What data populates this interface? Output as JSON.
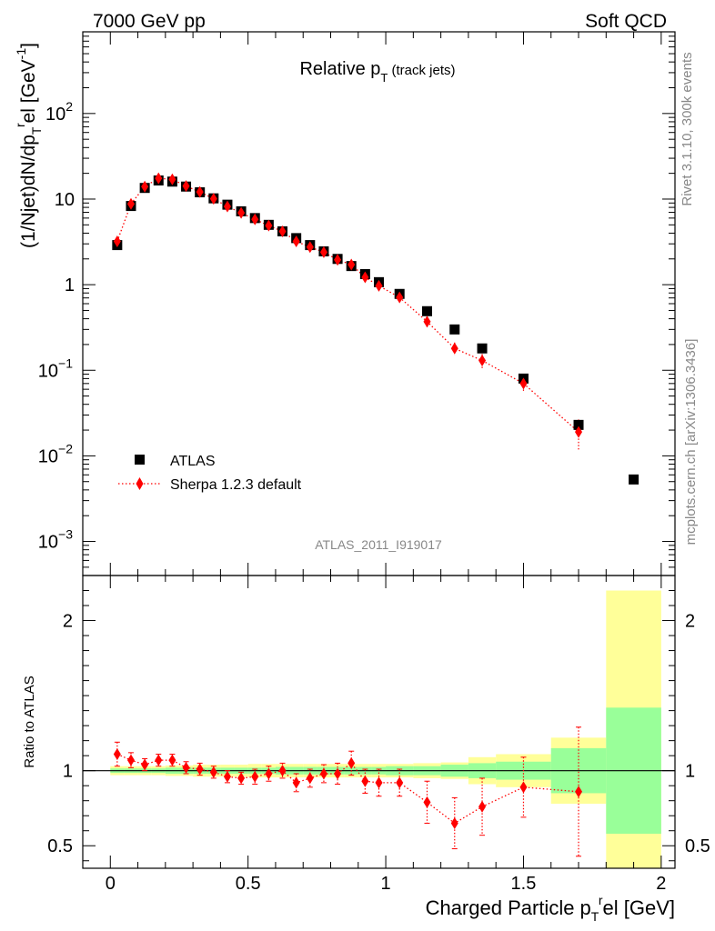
{
  "header": {
    "left": "7000 GeV pp",
    "right": "Soft QCD"
  },
  "title": {
    "main": "Relative p",
    "sub": "T",
    "suffix": " (track jets)"
  },
  "side_labels": {
    "rivet": "Rivet 3.1.10,  300k events",
    "mcplots": "mcplots.cern.ch [arXiv:1306.3436]"
  },
  "analysis_id": "ATLAS_2011_I919017",
  "chart_data": [
    {
      "type": "scatter",
      "panel": "main",
      "xlim": [
        -0.1,
        2.05
      ],
      "ylog": true,
      "ylim": [
        0.0004,
        900
      ],
      "ylabel": {
        "a": "(1/Njet)dN/dp",
        "b": "T",
        "c": "r",
        "d": "el [GeV",
        "e": "-1",
        "f": "]"
      },
      "yticks": [
        {
          "value": 1000,
          "label": ""
        },
        {
          "value": 100,
          "label": "10",
          "exp": "2"
        },
        {
          "value": 10,
          "label": "10",
          "exp": ""
        },
        {
          "value": 1,
          "label": "1",
          "exp": ""
        },
        {
          "value": 0.1,
          "label": "10",
          "exp": "−1"
        },
        {
          "value": 0.01,
          "label": "10",
          "exp": "−2"
        },
        {
          "value": 0.001,
          "label": "10",
          "exp": "−3"
        }
      ],
      "legend_position": "lower-left",
      "series": [
        {
          "name": "ATLAS",
          "color": "#000000",
          "marker": "square",
          "x": [
            0.025,
            0.075,
            0.125,
            0.175,
            0.225,
            0.275,
            0.325,
            0.375,
            0.425,
            0.475,
            0.525,
            0.575,
            0.625,
            0.675,
            0.725,
            0.775,
            0.825,
            0.875,
            0.925,
            0.975,
            1.05,
            1.15,
            1.25,
            1.35,
            1.5,
            1.7,
            1.9
          ],
          "y": [
            2.9,
            8.3,
            13.5,
            16.5,
            16.0,
            14.0,
            12.0,
            10.2,
            8.6,
            7.2,
            6.0,
            5.0,
            4.2,
            3.5,
            2.9,
            2.45,
            2.0,
            1.65,
            1.33,
            1.07,
            0.78,
            0.49,
            0.3,
            0.18,
            0.08,
            0.023,
            0.0053
          ]
        },
        {
          "name": "Sherpa 1.2.3 default",
          "color": "#ff0000",
          "marker": "diamond",
          "line": "dotted",
          "x": [
            0.025,
            0.075,
            0.125,
            0.175,
            0.225,
            0.275,
            0.325,
            0.375,
            0.425,
            0.475,
            0.525,
            0.575,
            0.625,
            0.675,
            0.725,
            0.775,
            0.825,
            0.875,
            0.925,
            0.975,
            1.05,
            1.15,
            1.25,
            1.35,
            1.5,
            1.7
          ],
          "y": [
            3.2,
            8.8,
            14.0,
            17.5,
            17.0,
            14.2,
            12.1,
            10.1,
            8.2,
            6.9,
            5.8,
            4.9,
            4.2,
            3.2,
            2.75,
            2.4,
            1.95,
            1.72,
            1.22,
            0.97,
            0.71,
            0.37,
            0.18,
            0.13,
            0.07,
            0.019
          ],
          "err_frac": [
            0.08,
            0.05,
            0.04,
            0.04,
            0.04,
            0.04,
            0.04,
            0.04,
            0.04,
            0.04,
            0.05,
            0.05,
            0.05,
            0.06,
            0.06,
            0.06,
            0.07,
            0.08,
            0.08,
            0.09,
            0.09,
            0.14,
            0.17,
            0.19,
            0.2,
            0.4
          ]
        }
      ]
    },
    {
      "type": "scatter",
      "panel": "ratio",
      "xlim": [
        -0.1,
        2.05
      ],
      "ylim": [
        0.35,
        2.3
      ],
      "ylabel": "Ratio to ATLAS",
      "xlabel": {
        "a": "Charged Particle p",
        "b": "T",
        "c": "r",
        "d": "el [GeV]"
      },
      "xticks": [
        {
          "value": 0,
          "label": "0"
        },
        {
          "value": 0.5,
          "label": "0.5"
        },
        {
          "value": 1,
          "label": "1"
        },
        {
          "value": 1.5,
          "label": "1.5"
        },
        {
          "value": 2,
          "label": "2"
        }
      ],
      "yticks": [
        {
          "value": 0.5,
          "label": "0.5"
        },
        {
          "value": 1,
          "label": "1"
        },
        {
          "value": 2,
          "label": "2"
        }
      ],
      "reference_line": 1,
      "bands": {
        "colors": {
          "inner": "#99ff99",
          "outer": "#ffff99"
        },
        "bins": [
          {
            "lo": 0.0,
            "hi": 0.05,
            "i": 0.015,
            "o": 0.03
          },
          {
            "lo": 0.05,
            "hi": 0.1,
            "i": 0.015,
            "o": 0.03
          },
          {
            "lo": 0.1,
            "hi": 0.15,
            "i": 0.015,
            "o": 0.03
          },
          {
            "lo": 0.15,
            "hi": 0.2,
            "i": 0.015,
            "o": 0.03
          },
          {
            "lo": 0.2,
            "hi": 0.25,
            "i": 0.02,
            "o": 0.035
          },
          {
            "lo": 0.25,
            "hi": 0.3,
            "i": 0.02,
            "o": 0.035
          },
          {
            "lo": 0.3,
            "hi": 0.35,
            "i": 0.02,
            "o": 0.04
          },
          {
            "lo": 0.35,
            "hi": 0.4,
            "i": 0.02,
            "o": 0.04
          },
          {
            "lo": 0.4,
            "hi": 0.45,
            "i": 0.02,
            "o": 0.04
          },
          {
            "lo": 0.45,
            "hi": 0.5,
            "i": 0.02,
            "o": 0.04
          },
          {
            "lo": 0.5,
            "hi": 0.55,
            "i": 0.02,
            "o": 0.045
          },
          {
            "lo": 0.55,
            "hi": 0.6,
            "i": 0.02,
            "o": 0.045
          },
          {
            "lo": 0.6,
            "hi": 0.65,
            "i": 0.025,
            "o": 0.045
          },
          {
            "lo": 0.65,
            "hi": 0.7,
            "i": 0.025,
            "o": 0.045
          },
          {
            "lo": 0.7,
            "hi": 0.75,
            "i": 0.025,
            "o": 0.045
          },
          {
            "lo": 0.75,
            "hi": 0.8,
            "i": 0.025,
            "o": 0.045
          },
          {
            "lo": 0.8,
            "hi": 0.85,
            "i": 0.025,
            "o": 0.045
          },
          {
            "lo": 0.85,
            "hi": 0.9,
            "i": 0.025,
            "o": 0.045
          },
          {
            "lo": 0.9,
            "hi": 0.95,
            "i": 0.025,
            "o": 0.045
          },
          {
            "lo": 0.95,
            "hi": 1.0,
            "i": 0.025,
            "o": 0.045
          },
          {
            "lo": 1.0,
            "hi": 1.1,
            "i": 0.03,
            "o": 0.045
          },
          {
            "lo": 1.1,
            "hi": 1.2,
            "i": 0.03,
            "o": 0.05
          },
          {
            "lo": 1.2,
            "hi": 1.3,
            "i": 0.04,
            "o": 0.055
          },
          {
            "lo": 1.3,
            "hi": 1.4,
            "i": 0.05,
            "o": 0.09
          },
          {
            "lo": 1.4,
            "hi": 1.6,
            "i": 0.06,
            "o": 0.11
          },
          {
            "lo": 1.6,
            "hi": 1.8,
            "i": 0.15,
            "o": 0.22
          },
          {
            "lo": 1.8,
            "hi": 2.0,
            "i": 0.42,
            "o": 1.2
          }
        ]
      },
      "series": [
        {
          "name": "Sherpa 1.2.3 default",
          "color": "#ff0000",
          "marker": "diamond",
          "line": "dotted",
          "x": [
            0.025,
            0.075,
            0.125,
            0.175,
            0.225,
            0.275,
            0.325,
            0.375,
            0.425,
            0.475,
            0.525,
            0.575,
            0.625,
            0.675,
            0.725,
            0.775,
            0.825,
            0.875,
            0.925,
            0.975,
            1.05,
            1.15,
            1.25,
            1.35,
            1.5,
            1.7
          ],
          "y": [
            1.11,
            1.07,
            1.04,
            1.07,
            1.07,
            1.02,
            1.01,
            0.99,
            0.96,
            0.95,
            0.96,
            0.98,
            1.0,
            0.92,
            0.95,
            0.98,
            0.98,
            1.05,
            0.93,
            0.92,
            0.92,
            0.79,
            0.65,
            0.76,
            0.89,
            0.86
          ],
          "err": [
            0.08,
            0.05,
            0.04,
            0.04,
            0.04,
            0.04,
            0.04,
            0.04,
            0.04,
            0.04,
            0.05,
            0.05,
            0.05,
            0.06,
            0.06,
            0.06,
            0.07,
            0.08,
            0.08,
            0.09,
            0.09,
            0.14,
            0.17,
            0.19,
            0.2,
            0.43
          ]
        }
      ]
    }
  ]
}
